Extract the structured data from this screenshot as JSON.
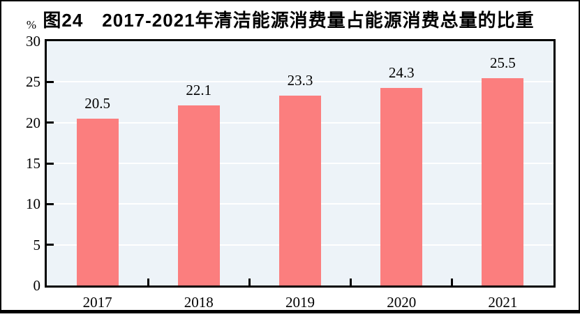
{
  "chart_data": {
    "type": "bar",
    "title": "图24　2017-2021年清洁能源消费量占能源消费总量的比重",
    "unit_label": "%",
    "categories": [
      "2017",
      "2018",
      "2019",
      "2020",
      "2021"
    ],
    "values": [
      20.5,
      22.1,
      23.3,
      24.3,
      25.5
    ],
    "value_labels": [
      "20.5",
      "22.1",
      "23.3",
      "24.3",
      "25.5"
    ],
    "xlabel": "",
    "ylabel": "%",
    "ylim": [
      0,
      30
    ],
    "yticks": [
      0,
      5,
      10,
      15,
      20,
      25,
      30
    ],
    "grid": "horizontal white gridlines at each y tick",
    "legend": "none",
    "colors": {
      "bar": "#FB7E7E",
      "plot_background": "#EDF3F8",
      "gridline": "#FFFFFF",
      "axis_and_frame": "#000000",
      "text": "#000000"
    }
  }
}
